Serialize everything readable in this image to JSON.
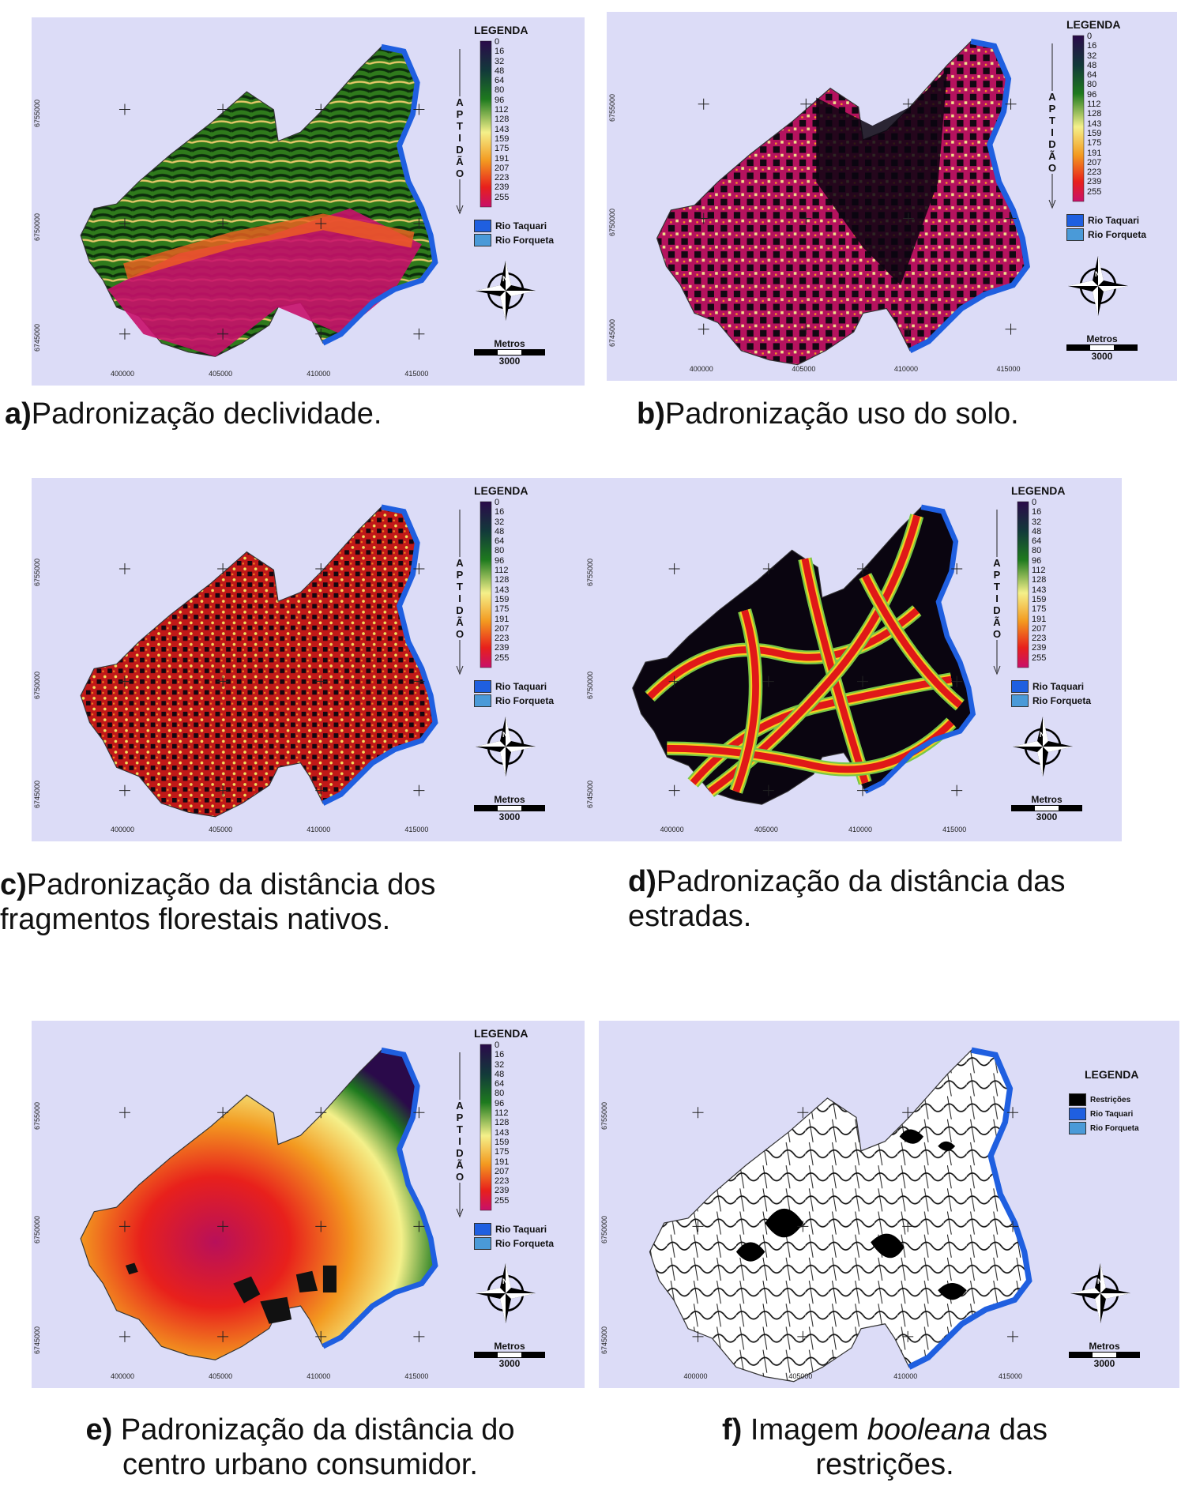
{
  "legend": {
    "title": "LEGENDA",
    "scale_ticks": [
      "0",
      "16",
      "32",
      "48",
      "64",
      "80",
      "96",
      "112",
      "128",
      "143",
      "159",
      "175",
      "191",
      "207",
      "223",
      "239",
      "255"
    ],
    "axis_label_letters": [
      "A",
      "P",
      "T",
      "I",
      "D",
      "Ã",
      "O"
    ],
    "river_taquari": "Rio Taquari",
    "river_forqueta": "Rio Forqueta",
    "restricoes": "Restrições"
  },
  "scale_bar": {
    "unit": "Metros",
    "distance": "3000"
  },
  "coordinates": {
    "x_ticks": [
      "400000",
      "405000",
      "410000",
      "415000"
    ],
    "y_ticks": [
      "6755000",
      "6750000",
      "6745000"
    ]
  },
  "colors": {
    "background": "#dcdcf7",
    "river_taquari": "#1f5fe0",
    "river_forqueta": "#4a9ad8"
  },
  "panels": [
    {
      "id": "a",
      "letter": "a)",
      "caption": "Padronização declividade."
    },
    {
      "id": "b",
      "letter": "b)",
      "caption": "Padronização uso do solo."
    },
    {
      "id": "c",
      "letter": "c)",
      "caption_line1": "Padronização da distância dos",
      "caption_line2": "fragmentos florestais nativos."
    },
    {
      "id": "d",
      "letter": "d)",
      "caption_line1": "Padronização da distância das",
      "caption_line2": "estradas."
    },
    {
      "id": "e",
      "letter": "e)",
      "caption_line1": "Padronização da distância do",
      "caption_line2": "centro urbano consumidor."
    },
    {
      "id": "f",
      "letter": "f)",
      "caption_pre": "Imagem",
      "caption_italic": "booleana",
      "caption_post": "das",
      "caption_line2": "restrições."
    }
  ]
}
